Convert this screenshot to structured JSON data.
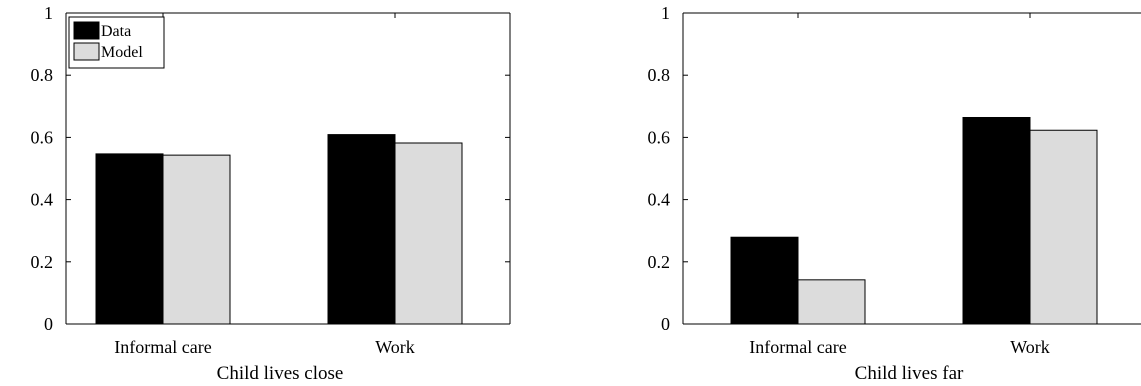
{
  "chart_data": [
    {
      "type": "bar",
      "xlabel": "Child lives close",
      "ylabel": "",
      "title": "",
      "ylim": [
        0,
        1
      ],
      "yticks": [
        "0",
        "0.2",
        "0.4",
        "0.6",
        "0.8",
        "1"
      ],
      "categories": [
        "Informal care",
        "Work"
      ],
      "series": [
        {
          "name": "Data",
          "color": "#000000",
          "values": [
            0.547,
            0.609
          ]
        },
        {
          "name": "Model",
          "color": "#dcdcdc",
          "values": [
            0.543,
            0.582
          ]
        }
      ],
      "legend": {
        "position": "top-left",
        "entries": [
          "Data",
          "Model"
        ]
      }
    },
    {
      "type": "bar",
      "xlabel": "Child lives far",
      "ylabel": "",
      "title": "",
      "ylim": [
        0,
        1
      ],
      "yticks": [
        "0",
        "0.2",
        "0.4",
        "0.6",
        "0.8",
        "1"
      ],
      "categories": [
        "Informal care",
        "Work"
      ],
      "series": [
        {
          "name": "Data",
          "color": "#000000",
          "values": [
            0.279,
            0.664
          ]
        },
        {
          "name": "Model",
          "color": "#dcdcdc",
          "values": [
            0.142,
            0.623
          ]
        }
      ]
    }
  ]
}
